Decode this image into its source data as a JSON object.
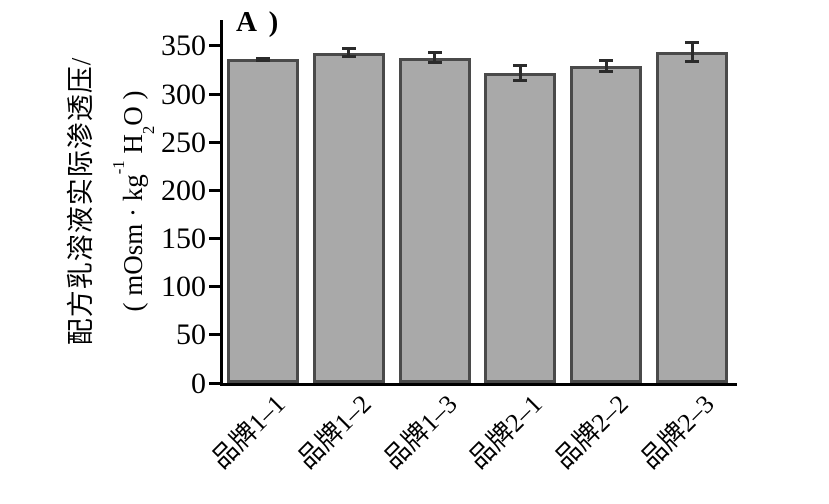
{
  "chart_data": {
    "type": "bar",
    "title": "A )",
    "categories": [
      "品牌1–1",
      "品牌1–2",
      "品牌1–3",
      "品牌2–1",
      "品牌2–2",
      "品牌2–3"
    ],
    "values": [
      336,
      343,
      338,
      322,
      329,
      344
    ],
    "errors": [
      1,
      4,
      5,
      8,
      6,
      10
    ],
    "error_direction": "both",
    "ylabel_line1": "配方乳溶液实际渗透压/",
    "ylabel_line2": "( mOsm · kg⁻¹ H₂O )",
    "ylabel_unit": {
      "p1": "( mOsm · kg",
      "sup": "-1",
      "p2": " H",
      "sub": "2",
      "p3": "O )"
    },
    "yticks": [
      0,
      50,
      100,
      150,
      200,
      250,
      300,
      350
    ],
    "ylim": [
      0,
      377
    ],
    "x_tick_rotation": 45,
    "grid": false,
    "bar_fill": "#a9a9a9",
    "bar_border": "#4a4a4a",
    "error_color": "#2b2b2b",
    "axis_color": "#000000",
    "background": "#ffffff"
  }
}
